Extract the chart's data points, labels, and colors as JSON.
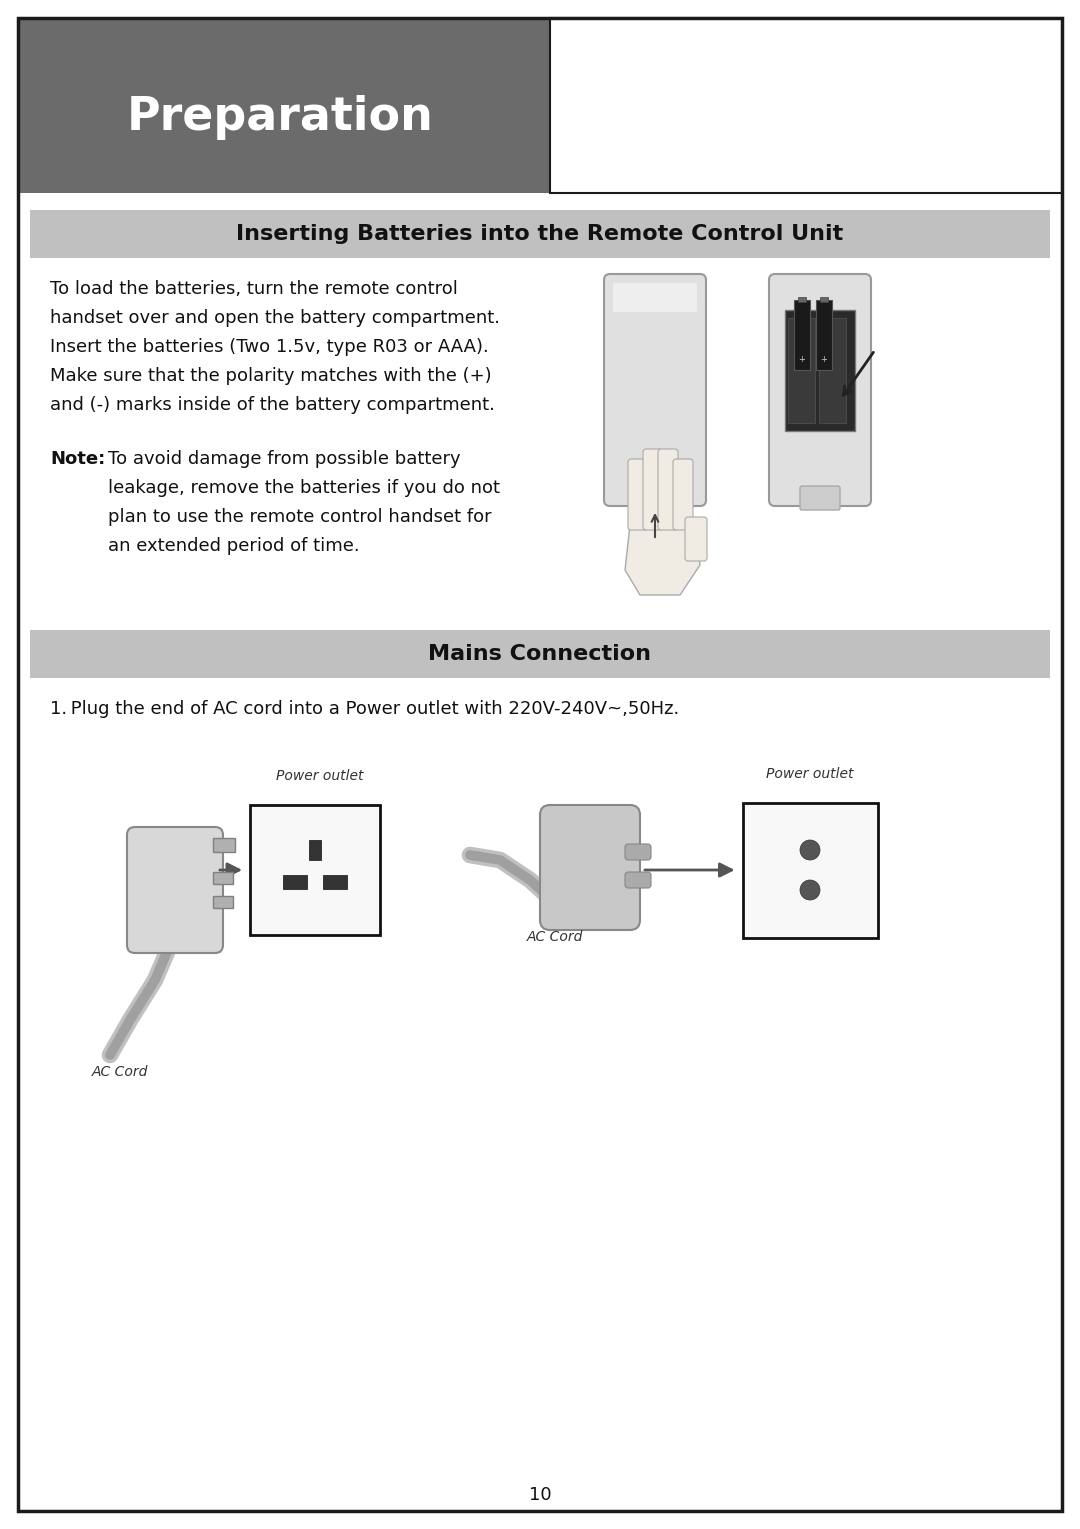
{
  "bg_color": "#ffffff",
  "border_color": "#1a1a1a",
  "header_bg": "#6b6b6b",
  "header_text": "Preparation",
  "header_text_color": "#ffffff",
  "section_bg": "#c0c0c0",
  "section1_title": "Inserting Batteries into the Remote Control Unit",
  "section2_title": "Mains Connection",
  "body_text_color": "#111111",
  "page_number": "10",
  "para1_lines": [
    "To load the batteries, turn the remote control",
    "handset over and open the battery compartment.",
    "Insert the batteries (Two 1.5v, type R03 or AAA).",
    "Make sure that the polarity matches with the (+)",
    "and (-) marks inside of the battery compartment."
  ],
  "note_line1": "To avoid damage from possible battery",
  "note_line2": "leakage, remove the batteries if you do not",
  "note_line3": "plan to use the remote control handset for",
  "note_line4": "an extended period of time.",
  "mains_text": "1. Plug the end of AC cord into a Power outlet with 220V-240V~,50Hz.",
  "label_power_outlet": "Power outlet",
  "label_ac_cord": "AC Cord"
}
